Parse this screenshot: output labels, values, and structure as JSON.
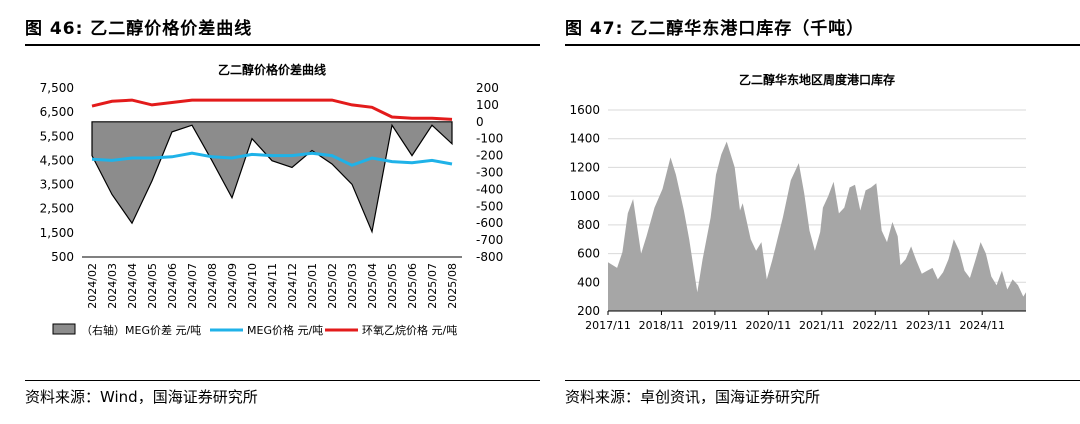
{
  "left": {
    "fig_title": "图 46:  乙二醇价格价差曲线",
    "source": "资料来源：Wind，国海证券研究所"
  },
  "right": {
    "fig_title": "图 47:  乙二醇华东港口库存（千吨）",
    "source": "资料来源：卓创资讯，国海证券研究所"
  },
  "chart_data": [
    {
      "type": "line",
      "title": "乙二醇价格价差曲线",
      "x": [
        "2024/02",
        "2024/03",
        "2024/04",
        "2024/05",
        "2024/06",
        "2024/07",
        "2024/08",
        "2024/09",
        "2024/10",
        "2024/11",
        "2024/12",
        "2025/01",
        "2025/02",
        "2025/03",
        "2025/04",
        "2025/05",
        "2025/06",
        "2025/07",
        "2025/08"
      ],
      "y_left": {
        "ticks": [
          500,
          1500,
          2500,
          3500,
          4500,
          5500,
          6500,
          7500
        ],
        "range": [
          500,
          7500
        ]
      },
      "y_right": {
        "ticks": [
          -800,
          -700,
          -600,
          -500,
          -400,
          -300,
          -200,
          -100,
          0,
          100,
          200
        ],
        "range": [
          -800,
          200
        ]
      },
      "series": [
        {
          "name": "（右轴）MEG价差  元/吨",
          "kind": "area",
          "axis": "right",
          "color": "#8c8c8c",
          "values": [
            -200,
            -430,
            -600,
            -350,
            -60,
            -20,
            -230,
            -450,
            -100,
            -230,
            -270,
            -170,
            -250,
            -370,
            -650,
            -20,
            -200,
            -20,
            -130
          ]
        },
        {
          "name": "MEG价格  元/吨",
          "kind": "line",
          "axis": "left",
          "color": "#1fb2e8",
          "values": [
            4550,
            4500,
            4600,
            4600,
            4650,
            4800,
            4650,
            4600,
            4750,
            4700,
            4700,
            4800,
            4700,
            4300,
            4600,
            4450,
            4400,
            4500,
            4350
          ]
        },
        {
          "name": "环氧乙烷价格  元/吨",
          "kind": "line",
          "axis": "left",
          "color": "#e31b1b",
          "values": [
            6750,
            6950,
            7000,
            6800,
            6900,
            7000,
            7000,
            7000,
            7000,
            7000,
            7000,
            7000,
            7000,
            6800,
            6700,
            6300,
            6250,
            6250,
            6200
          ]
        }
      ]
    },
    {
      "type": "area",
      "title": "乙二醇华东地区周度港口库存",
      "x_ticks": [
        "2017/11",
        "2018/11",
        "2019/11",
        "2020/11",
        "2021/11",
        "2022/11",
        "2023/11",
        "2024/11"
      ],
      "ylim": [
        200,
        1600
      ],
      "y_ticks": [
        200,
        400,
        600,
        800,
        1000,
        1200,
        1400,
        1600
      ],
      "series": [
        {
          "color": "#a6a6a6",
          "x": [
            2017.83,
            2018.0,
            2018.1,
            2018.2,
            2018.3,
            2018.45,
            2018.55,
            2018.7,
            2018.85,
            2019.0,
            2019.1,
            2019.25,
            2019.35,
            2019.5,
            2019.6,
            2019.75,
            2019.85,
            2019.95,
            2020.05,
            2020.2,
            2020.3,
            2020.35,
            2020.5,
            2020.6,
            2020.7,
            2020.8,
            2020.9,
            2021.0,
            2021.1,
            2021.25,
            2021.4,
            2021.5,
            2021.6,
            2021.7,
            2021.8,
            2021.85,
            2021.95,
            2022.05,
            2022.15,
            2022.25,
            2022.35,
            2022.45,
            2022.55,
            2022.65,
            2022.75,
            2022.85,
            2022.95,
            2023.05,
            2023.15,
            2023.25,
            2023.3,
            2023.4,
            2023.5,
            2023.6,
            2023.7,
            2023.8,
            2023.9,
            2024.0,
            2024.1,
            2024.2,
            2024.3,
            2024.4,
            2024.5,
            2024.6,
            2024.7,
            2024.8,
            2024.9,
            2025.0,
            2025.1,
            2025.2,
            2025.3,
            2025.4,
            2025.5,
            2025.6,
            2025.65
          ],
          "y": [
            540,
            500,
            610,
            880,
            980,
            600,
            720,
            920,
            1050,
            1270,
            1150,
            900,
            700,
            330,
            560,
            850,
            1150,
            1290,
            1380,
            1200,
            900,
            950,
            700,
            620,
            680,
            420,
            550,
            700,
            850,
            1110,
            1230,
            1020,
            760,
            620,
            750,
            920,
            1000,
            1100,
            880,
            920,
            1060,
            1080,
            900,
            1040,
            1060,
            1090,
            760,
            680,
            820,
            720,
            520,
            560,
            650,
            550,
            460,
            480,
            500,
            420,
            470,
            560,
            700,
            620,
            480,
            430,
            550,
            680,
            600,
            440,
            380,
            480,
            350,
            420,
            380,
            300,
            330
          ]
        }
      ]
    }
  ]
}
